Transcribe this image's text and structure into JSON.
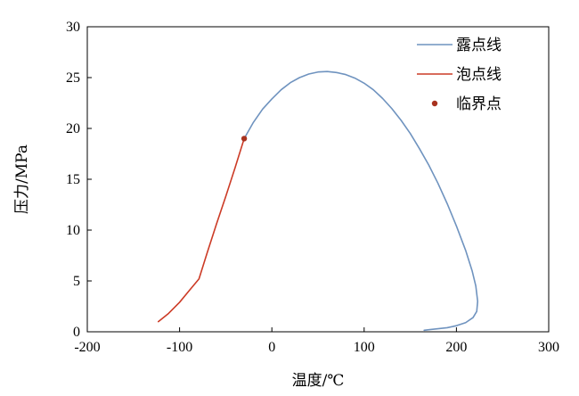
{
  "chart_data": {
    "type": "line",
    "xlabel": "温度/℃",
    "ylabel": "压力/MPa",
    "xlim": [
      -200,
      300
    ],
    "ylim": [
      0,
      30
    ],
    "xticks": [
      -200,
      -100,
      0,
      100,
      200,
      300
    ],
    "yticks": [
      0,
      5,
      10,
      15,
      20,
      25,
      30
    ],
    "grid": false,
    "legend_position": "top-right",
    "series": [
      {
        "name": "露点线",
        "color": "#6f93bf",
        "style": "line",
        "points": [
          [
            -30,
            19
          ],
          [
            -20,
            20.6
          ],
          [
            -10,
            21.9
          ],
          [
            0,
            22.9
          ],
          [
            10,
            23.8
          ],
          [
            20,
            24.5
          ],
          [
            30,
            25.0
          ],
          [
            40,
            25.35
          ],
          [
            50,
            25.55
          ],
          [
            60,
            25.6
          ],
          [
            70,
            25.5
          ],
          [
            80,
            25.3
          ],
          [
            90,
            24.95
          ],
          [
            100,
            24.45
          ],
          [
            110,
            23.8
          ],
          [
            120,
            22.95
          ],
          [
            130,
            21.95
          ],
          [
            140,
            20.8
          ],
          [
            150,
            19.5
          ],
          [
            160,
            18.0
          ],
          [
            170,
            16.4
          ],
          [
            180,
            14.6
          ],
          [
            190,
            12.6
          ],
          [
            200,
            10.4
          ],
          [
            210,
            8.0
          ],
          [
            217,
            6.0
          ],
          [
            221,
            4.5
          ],
          [
            223,
            3.0
          ],
          [
            222,
            2.0
          ],
          [
            218,
            1.4
          ],
          [
            210,
            0.9
          ],
          [
            200,
            0.6
          ],
          [
            190,
            0.4
          ],
          [
            180,
            0.3
          ],
          [
            170,
            0.2
          ],
          [
            165,
            0.15
          ]
        ]
      },
      {
        "name": "泡点线",
        "color": "#cc3b26",
        "style": "line",
        "points": [
          [
            -123,
            1.0
          ],
          [
            -112,
            1.8
          ],
          [
            -100,
            2.9
          ],
          [
            -90,
            4.0
          ],
          [
            -79,
            5.2
          ],
          [
            -70,
            7.8
          ],
          [
            -60,
            10.6
          ],
          [
            -50,
            13.3
          ],
          [
            -40,
            16.1
          ],
          [
            -30,
            19.0
          ]
        ]
      },
      {
        "name": "临界点",
        "color": "#a8321f",
        "style": "marker",
        "points": [
          [
            -30,
            19.0
          ]
        ]
      }
    ]
  }
}
